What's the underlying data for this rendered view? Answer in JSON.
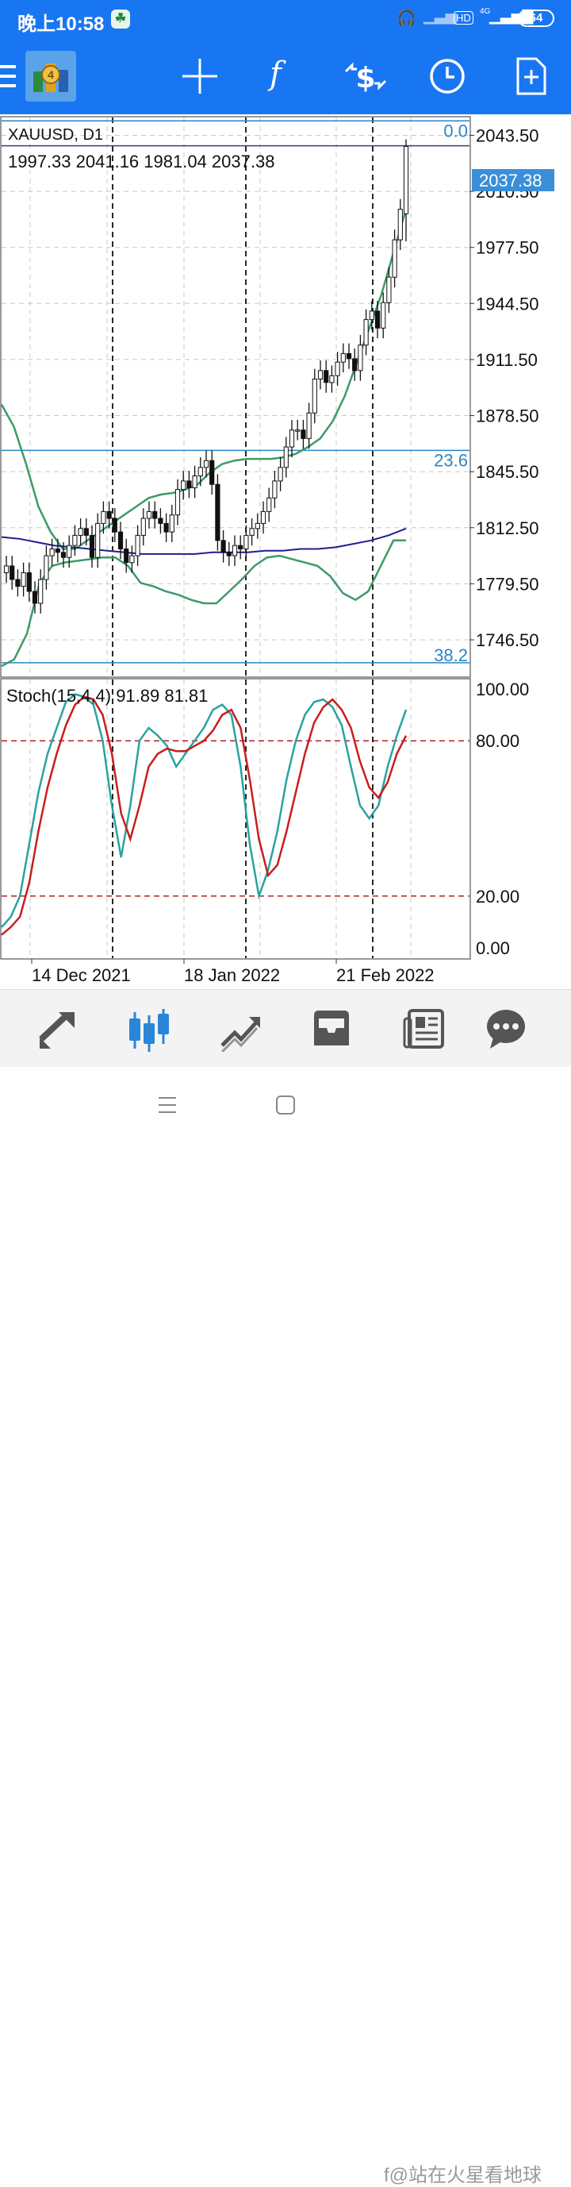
{
  "status_bar": {
    "time": "晚上10:58",
    "network": "4G",
    "hd": "HD",
    "battery": "64"
  },
  "toolbar": {
    "icons": [
      "menu-icon",
      "metatrader-logo",
      "crosshair-icon",
      "indicators-icon",
      "trade-icon",
      "period-clock-icon",
      "add-chart-icon"
    ],
    "indicators_label": "f"
  },
  "chart": {
    "symbol_line": "XAUUSD, D1",
    "ohlc_line": "1997.33 2041.16 1981.04 2037.38",
    "last_price_label": "2037.38",
    "price_ticks": [
      "2043.50",
      "2010.50",
      "1977.50",
      "1944.50",
      "1911.50",
      "1878.50",
      "1845.50",
      "1812.50",
      "1779.50",
      "1746.50"
    ],
    "fib_levels": [
      {
        "label": "0.0"
      },
      {
        "label": "23.6"
      },
      {
        "label": "38.2"
      }
    ],
    "stoch_label": "Stoch(15,4,4) 91.89 81.81",
    "stoch_ticks": [
      "100.00",
      "80.00",
      "20.00",
      "0.00"
    ],
    "date_labels": [
      "14 Dec 2021",
      "18 Jan 2022",
      "21 Feb 2022"
    ],
    "colors": {
      "bollinger": "#3d9a66",
      "ma": "#1f1f8c",
      "fib": "#2a86c6",
      "stoch_main": "#2aa3a0",
      "stoch_signal": "#c81e1e",
      "levels": "#b02020"
    }
  },
  "chart_data": {
    "type": "candlestick",
    "title": "XAUUSD, D1",
    "ylim": [
      1725,
      2054
    ],
    "y_ticks": [
      2043.5,
      2010.5,
      1977.5,
      1944.5,
      1911.5,
      1878.5,
      1845.5,
      1812.5,
      1779.5,
      1746.5
    ],
    "last_price": 2037.38,
    "ohlc_last": {
      "open": 1997.33,
      "high": 2041.16,
      "low": 1981.04,
      "close": 2037.38
    },
    "candles_close": [
      1790,
      1782,
      1778,
      1786,
      1775,
      1768,
      1782,
      1796,
      1800,
      1798,
      1795,
      1802,
      1808,
      1812,
      1808,
      1795,
      1815,
      1822,
      1818,
      1810,
      1800,
      1792,
      1796,
      1808,
      1818,
      1822,
      1818,
      1815,
      1810,
      1820,
      1835,
      1840,
      1836,
      1843,
      1848,
      1852,
      1838,
      1805,
      1798,
      1796,
      1802,
      1800,
      1808,
      1812,
      1815,
      1822,
      1830,
      1840,
      1848,
      1860,
      1870,
      1870,
      1865,
      1880,
      1900,
      1905,
      1898,
      1902,
      1910,
      1915,
      1912,
      1905,
      1920,
      1935,
      1940,
      1930,
      1945,
      1960,
      1982,
      2000,
      2037
    ],
    "bollinger_upper": [
      1885,
      1872,
      1850,
      1825,
      1810,
      1800,
      1800,
      1805,
      1810,
      1815,
      1820,
      1825,
      1830,
      1832,
      1833,
      1835,
      1838,
      1845,
      1850,
      1852,
      1853,
      1853,
      1853,
      1854,
      1856,
      1860,
      1865,
      1875,
      1890,
      1910,
      1930,
      1950,
      1975,
      2000
    ],
    "bollinger_lower": [
      1731,
      1735,
      1750,
      1780,
      1790,
      1792,
      1793,
      1794,
      1795,
      1795,
      1790,
      1780,
      1778,
      1775,
      1773,
      1770,
      1768,
      1768,
      1775,
      1782,
      1790,
      1795,
      1796,
      1794,
      1792,
      1790,
      1784,
      1774,
      1770,
      1775,
      1790,
      1805,
      1805
    ],
    "ma": [
      1807,
      1806,
      1804,
      1802,
      1801,
      1800,
      1799,
      1798,
      1797,
      1797,
      1797,
      1797,
      1798,
      1798,
      1798,
      1799,
      1799,
      1800,
      1800,
      1801,
      1803,
      1805,
      1808,
      1812
    ],
    "fib_levels": [
      {
        "level": "0.0",
        "price": 2052
      },
      {
        "level": "23.6",
        "price": 1858
      },
      {
        "level": "38.2",
        "price": 1733
      }
    ],
    "stochastic": {
      "params": "15,4,4",
      "main_last": 91.89,
      "signal_last": 81.81,
      "levels": [
        80,
        20
      ],
      "ylim": [
        0,
        100
      ],
      "main": [
        8,
        12,
        20,
        40,
        60,
        75,
        85,
        95,
        98,
        97,
        94,
        80,
        55,
        35,
        55,
        80,
        85,
        82,
        78,
        70,
        75,
        80,
        85,
        92,
        94,
        90,
        70,
        40,
        20,
        30,
        45,
        65,
        80,
        90,
        95,
        96,
        93,
        86,
        70,
        55,
        50,
        55,
        70,
        82,
        92
      ],
      "signal": [
        5,
        8,
        12,
        25,
        45,
        62,
        75,
        86,
        94,
        97,
        96,
        90,
        75,
        52,
        42,
        55,
        70,
        75,
        77,
        76,
        76,
        78,
        80,
        84,
        90,
        92,
        85,
        65,
        42,
        28,
        32,
        45,
        60,
        75,
        87,
        93,
        96,
        92,
        85,
        72,
        62,
        58,
        64,
        75,
        82
      ]
    },
    "x_labels": [
      "14 Dec 2021",
      "18 Jan 2022",
      "21 Feb 2022"
    ]
  },
  "bottom_nav": {
    "items": [
      "quotes-icon",
      "charts-icon",
      "trade-icon",
      "history-icon",
      "news-icon",
      "messages-icon"
    ],
    "active": "charts-icon"
  },
  "system_nav": {
    "watermark": "f@站在火星看地球"
  }
}
